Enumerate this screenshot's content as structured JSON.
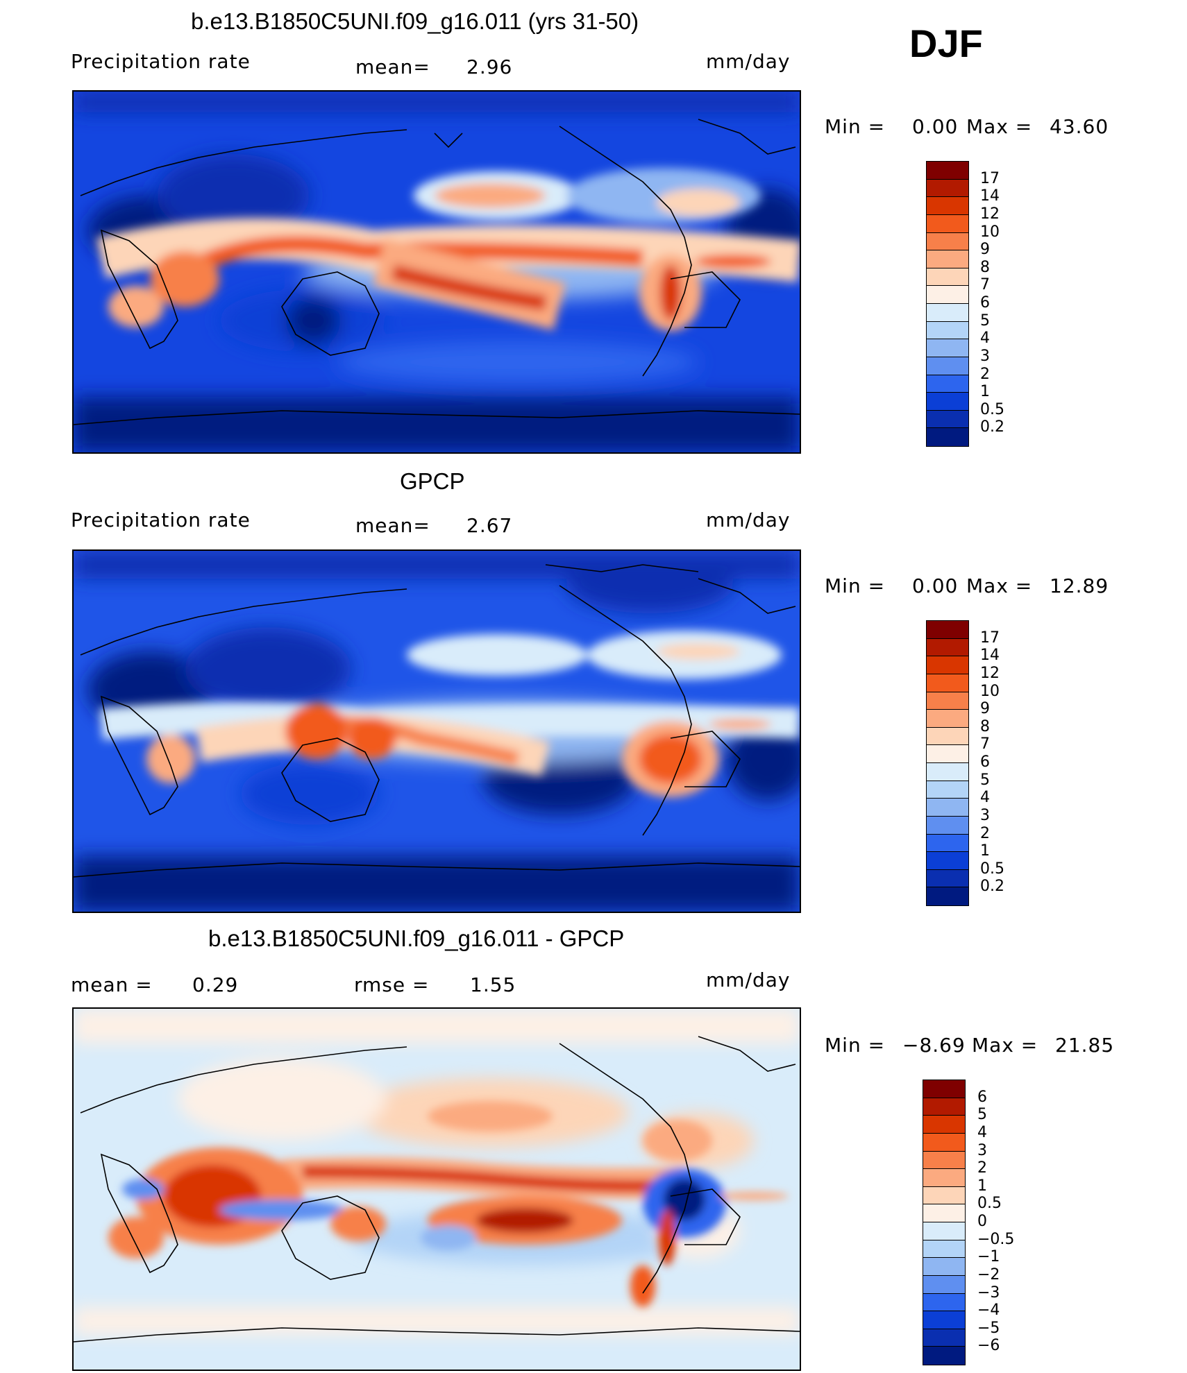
{
  "season": "DJF",
  "panels": [
    {
      "title": "b.e13.B1850C5UNI.f09_g16.011 (yrs 31-50)",
      "left_label": "Precipitation rate",
      "center_label": "mean=",
      "center_value": "2.96",
      "units": "mm/day",
      "min_label": "Min =",
      "min_value": "0.00",
      "max_label": "Max =",
      "max_value": "43.60"
    },
    {
      "title": "GPCP",
      "left_label": "Precipitation rate",
      "center_label": "mean=",
      "center_value": "2.67",
      "units": "mm/day",
      "min_label": "Min =",
      "min_value": "0.00",
      "max_label": "Max =",
      "max_value": "12.89"
    },
    {
      "title": "b.e13.B1850C5UNI.f09_g16.011 - GPCP",
      "left_label": "mean =",
      "left_value": "0.29",
      "center_label": "rmse =",
      "center_value": "1.55",
      "units": "mm/day",
      "min_label": "Min =",
      "min_value": "−8.69",
      "max_label": "Max =",
      "max_value": "21.85"
    }
  ],
  "colorbar_precip": {
    "labels": [
      "17",
      "14",
      "12",
      "10",
      "9",
      "8",
      "7",
      "6",
      "5",
      "4",
      "3",
      "2",
      "1",
      "0.5",
      "0.2"
    ],
    "colors": [
      "#7f0000",
      "#b21a00",
      "#d93600",
      "#f25a1c",
      "#f7804a",
      "#fbaa80",
      "#fdd5b8",
      "#fdf0e6",
      "#d9ecfa",
      "#b3d4f7",
      "#8fb6f2",
      "#5f8ff0",
      "#2d65ee",
      "#0b3fd6",
      "#0a2fb0",
      "#001a80"
    ]
  },
  "colorbar_diff": {
    "labels": [
      "6",
      "5",
      "4",
      "3",
      "2",
      "1",
      "0.5",
      "0",
      "−0.5",
      "−1",
      "−2",
      "−3",
      "−4",
      "−5",
      "−6"
    ],
    "colors": [
      "#7f0000",
      "#b21a00",
      "#d93600",
      "#f25a1c",
      "#f7804a",
      "#fbaa80",
      "#fdd5b8",
      "#fdf0e6",
      "#d9ecfa",
      "#b3d4f7",
      "#8fb6f2",
      "#5f8ff0",
      "#2d65ee",
      "#0b3fd6",
      "#0a2fb0",
      "#001a80"
    ]
  }
}
